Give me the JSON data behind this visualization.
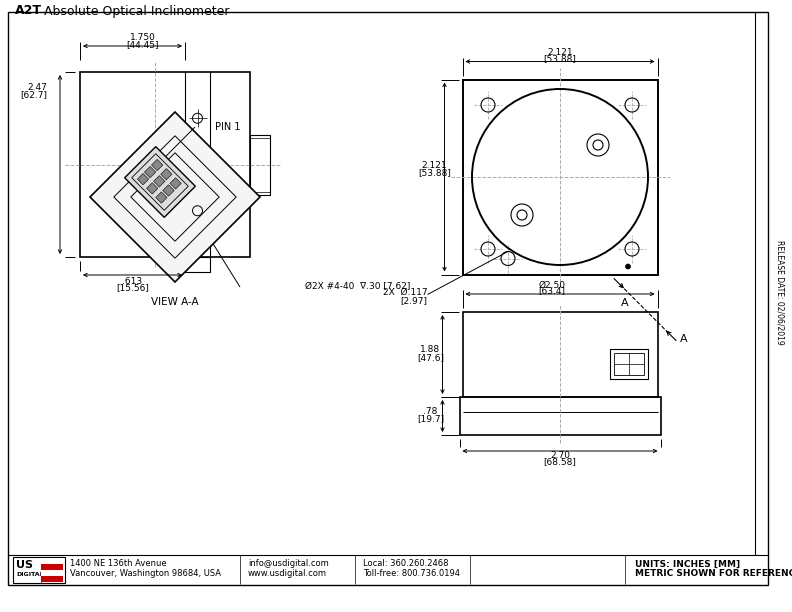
{
  "title_bold": "A2T",
  "title_rest": " Absolute Optical Inclinometer",
  "bg_color": "#ffffff",
  "line_color": "#000000",
  "center_line_color": "#aaaaaa",
  "footer_line1_left": "1400 NE 136th Avenue",
  "footer_line2_left": "Vancouver, Washington 98684, USA",
  "footer_mid1": "info@usdigital.com",
  "footer_mid2": "www.usdigital.com",
  "footer_right1": "Local: 360.260.2468",
  "footer_right2": "Toll-free: 800.736.0194",
  "footer_units": "UNITS: INCHES [MM]",
  "footer_metric": "METRIC SHOWN FOR REFERENCE ONLY",
  "release_date": "RELEASE DATE: 02/06/2019"
}
